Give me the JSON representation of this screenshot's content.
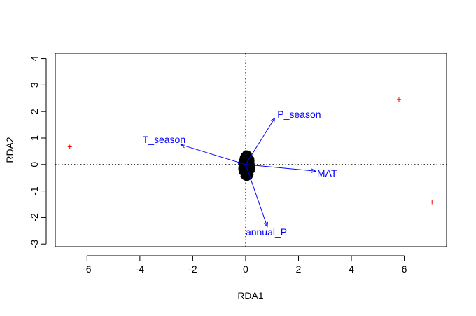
{
  "chart_data": {
    "type": "scatter",
    "xlabel": "RDA1",
    "ylabel": "RDA2",
    "xlim": [
      -7.2,
      7.6
    ],
    "ylim": [
      -3.1,
      4.2
    ],
    "x_ticks": [
      -6,
      -4,
      -2,
      0,
      2,
      4,
      6
    ],
    "y_ticks": [
      -3,
      -2,
      -1,
      0,
      1,
      2,
      3,
      4
    ],
    "x_tick_labels": [
      "-6",
      "-4",
      "-2",
      "0",
      "2",
      "4",
      "6"
    ],
    "y_tick_labels": [
      "-3",
      "-2",
      "-1",
      "0",
      "1",
      "2",
      "3",
      "4"
    ],
    "reference_lines": {
      "x": 0,
      "y": 0,
      "style": "dotted"
    },
    "grid": false,
    "colors": {
      "sites": "#000000",
      "outliers": "#ff0000",
      "arrows": "#0000ff"
    },
    "outlier_points": [
      {
        "x": -6.65,
        "y": 0.67
      },
      {
        "x": 5.8,
        "y": 2.45
      },
      {
        "x": 7.05,
        "y": -1.42
      }
    ],
    "site_cluster": {
      "x_range": [
        -0.22,
        0.3
      ],
      "y_range": [
        -0.58,
        0.48
      ]
    },
    "arrows": [
      {
        "name": "P_season",
        "x": 1.1,
        "y": 1.75,
        "label_x": 1.2,
        "label_y": 1.9
      },
      {
        "name": "T_season",
        "x": -2.45,
        "y": 0.75,
        "label_x": -3.9,
        "label_y": 0.95
      },
      {
        "name": "MAT",
        "x": 2.65,
        "y": -0.25,
        "label_x": 2.7,
        "label_y": -0.32
      },
      {
        "name": "annual_P",
        "x": 0.82,
        "y": -2.35,
        "label_x": 0.0,
        "label_y": -2.55
      }
    ]
  }
}
